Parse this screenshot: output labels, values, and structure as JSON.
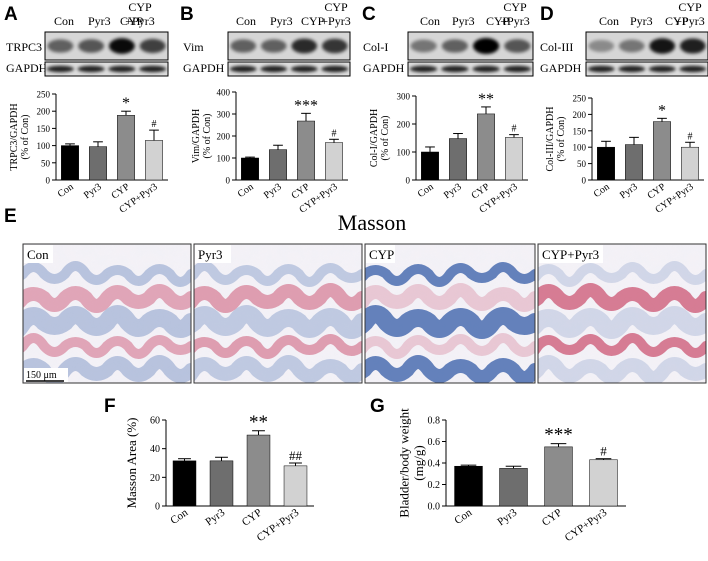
{
  "panel_letters": {
    "A": "A",
    "B": "B",
    "C": "C",
    "D": "D",
    "E": "E",
    "F": "F",
    "G": "G"
  },
  "blots": [
    {
      "header": [
        "Con",
        "Pyr3",
        "CYP",
        "CYP",
        "+Pyr3"
      ],
      "protein": "TRPC3",
      "loading": "GAPDH"
    },
    {
      "header": [
        "Con",
        "Pyr3",
        "CYP",
        "CYP",
        "+Pyr3"
      ],
      "protein": "Vim",
      "loading": "GAPDH"
    },
    {
      "header": [
        "Con",
        "Pyr3",
        "CYP",
        "CYP",
        "+Pyr3"
      ],
      "protein": "Col-I",
      "loading": "GAPDH"
    },
    {
      "header": [
        "Con",
        "Pyr3",
        "CYP",
        "CYP",
        "+Pyr3"
      ],
      "protein": "Col-III",
      "loading": "GAPDH"
    }
  ],
  "masson": {
    "title": "Masson",
    "panels": [
      "Con",
      "Pyr3",
      "CYP",
      "CYP+Pyr3"
    ],
    "scale_bar": "150 μm"
  },
  "colors": {
    "con": "#000000",
    "pyr3": "#6e6e6e",
    "cyp": "#8c8c8c",
    "cyp_pyr3": "#d2d2d2",
    "masson_blue": "#4a6db0",
    "masson_red": "#c94a6a"
  },
  "chart_data": [
    {
      "type": "bar",
      "categories": [
        "Con",
        "Pyr3",
        "CYP",
        "CYP+Pyr3"
      ],
      "values": [
        100,
        97,
        188,
        115
      ],
      "errors": [
        5,
        14,
        12,
        30
      ],
      "ylabel": [
        "TRPC3/GAPDH",
        "(% of Con)"
      ],
      "ylim": [
        0,
        250
      ],
      "yticks": [
        0,
        50,
        100,
        150,
        200,
        250
      ],
      "annotations": [
        "",
        "",
        "*",
        "#"
      ]
    },
    {
      "type": "bar",
      "categories": [
        "Con",
        "Pyr3",
        "CYP",
        "CYP+Pyr3"
      ],
      "values": [
        100,
        138,
        268,
        170
      ],
      "errors": [
        4,
        20,
        35,
        15
      ],
      "ylabel": [
        "Vim/GAPDH",
        "(% of Con)"
      ],
      "ylim": [
        0,
        400
      ],
      "yticks": [
        0,
        100,
        200,
        300,
        400
      ],
      "annotations": [
        "",
        "",
        "***",
        "#"
      ]
    },
    {
      "type": "bar",
      "categories": [
        "Con",
        "Pyr3",
        "CYP",
        "CYP+Pyr3"
      ],
      "values": [
        100,
        148,
        236,
        152
      ],
      "errors": [
        18,
        18,
        25,
        10
      ],
      "ylabel": [
        "Col-I/GAPDH",
        "(% of Con)"
      ],
      "ylim": [
        0,
        300
      ],
      "yticks": [
        0,
        100,
        200,
        300
      ],
      "annotations": [
        "",
        "",
        "**",
        "#"
      ]
    },
    {
      "type": "bar",
      "categories": [
        "Con",
        "Pyr3",
        "CYP",
        "CYP+Pyr3"
      ],
      "values": [
        100,
        108,
        178,
        100
      ],
      "errors": [
        18,
        22,
        10,
        15
      ],
      "ylabel": [
        "Col-III/GAPDH",
        "(% of Con)"
      ],
      "ylim": [
        0,
        250
      ],
      "yticks": [
        0,
        50,
        100,
        150,
        200,
        250
      ],
      "annotations": [
        "",
        "",
        "*",
        "#"
      ]
    },
    {
      "type": "bar",
      "categories": [
        "Con",
        "Pyr3",
        "CYP",
        "CYP+Pyr3"
      ],
      "values": [
        31.5,
        31.5,
        49.5,
        28
      ],
      "errors": [
        1.5,
        2.5,
        3,
        2
      ],
      "ylabel": [
        "Masson Area (%)"
      ],
      "ylim": [
        0,
        60
      ],
      "yticks": [
        0,
        20,
        40,
        60
      ],
      "annotations": [
        "",
        "",
        "**",
        "##"
      ]
    },
    {
      "type": "bar",
      "categories": [
        "Con",
        "Pyr3",
        "CYP",
        "CYP+Pyr3"
      ],
      "values": [
        0.37,
        0.35,
        0.55,
        0.43
      ],
      "errors": [
        0.01,
        0.02,
        0.03,
        0.01
      ],
      "ylabel": [
        "Bladder/body weight",
        "(mg/g)"
      ],
      "ylim": [
        0,
        0.8
      ],
      "yticks": [
        0,
        0.2,
        0.4,
        0.6,
        0.8
      ],
      "yticklabels": [
        "0.0",
        "0.2",
        "0.4",
        "0.6",
        "0.8"
      ],
      "annotations": [
        "",
        "",
        "***",
        "#"
      ]
    }
  ]
}
